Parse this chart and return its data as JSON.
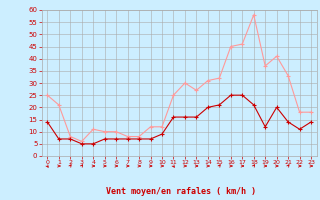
{
  "hours": [
    0,
    1,
    2,
    3,
    4,
    5,
    6,
    7,
    8,
    9,
    10,
    11,
    12,
    13,
    14,
    15,
    16,
    17,
    18,
    19,
    20,
    21,
    22,
    23
  ],
  "wind_avg": [
    14,
    7,
    7,
    5,
    5,
    7,
    7,
    7,
    7,
    7,
    9,
    16,
    16,
    16,
    20,
    21,
    25,
    25,
    21,
    12,
    20,
    14,
    11,
    14
  ],
  "wind_gust": [
    25,
    21,
    8,
    6,
    11,
    10,
    10,
    8,
    8,
    12,
    12,
    25,
    30,
    27,
    31,
    32,
    45,
    46,
    58,
    37,
    41,
    33,
    18,
    18
  ],
  "wind_dirs": [
    45,
    90,
    135,
    135,
    90,
    90,
    90,
    90,
    90,
    90,
    90,
    45,
    90,
    90,
    90,
    135,
    90,
    90,
    135,
    90,
    90,
    135,
    90,
    90
  ],
  "bg_color": "#cceeff",
  "grid_color": "#aaaaaa",
  "avg_color": "#cc0000",
  "gust_color": "#ff9999",
  "xlabel": "Vent moyen/en rafales ( km/h )",
  "xlabel_color": "#cc0000",
  "tick_color": "#cc0000",
  "ylim": [
    0,
    60
  ],
  "yticks": [
    0,
    5,
    10,
    15,
    20,
    25,
    30,
    35,
    40,
    45,
    50,
    55,
    60
  ],
  "xticks": [
    0,
    1,
    2,
    3,
    4,
    5,
    6,
    7,
    8,
    9,
    10,
    11,
    12,
    13,
    14,
    15,
    16,
    17,
    18,
    19,
    20,
    21,
    22,
    23
  ]
}
